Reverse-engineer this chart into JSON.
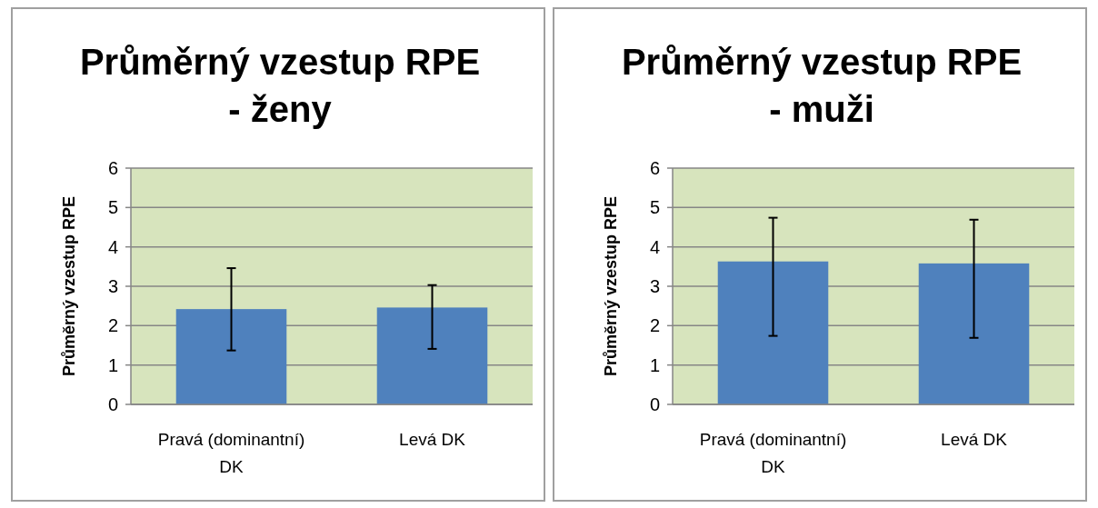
{
  "chart_data": [
    {
      "type": "bar",
      "title": "Průměrný vzestup RPE - ženy",
      "ylabel": "Průměrný vzestup RPE",
      "categories": [
        "Pravá (dominantní) DK",
        "Levá DK"
      ],
      "values": [
        2.42,
        2.46
      ],
      "errors": [
        [
          1.37,
          3.46
        ],
        [
          1.41,
          3.03
        ]
      ],
      "color": "#4f81bd",
      "ylim": [
        0,
        6
      ],
      "yticks": [
        0,
        1,
        2,
        3,
        4,
        5,
        6
      ],
      "grid": "y"
    },
    {
      "type": "bar",
      "title": "Průměrný vzestup RPE - muži",
      "ylabel": "Průměrný vzestup RPE",
      "categories": [
        "Pravá (dominantní) DK",
        "Levá DK"
      ],
      "values": [
        3.63,
        3.58
      ],
      "errors": [
        [
          1.74,
          4.74
        ],
        [
          1.69,
          4.69
        ]
      ],
      "color": "#4f81bd",
      "ylim": [
        0,
        6
      ],
      "yticks": [
        0,
        1,
        2,
        3,
        4,
        5,
        6
      ],
      "grid": "y"
    }
  ]
}
